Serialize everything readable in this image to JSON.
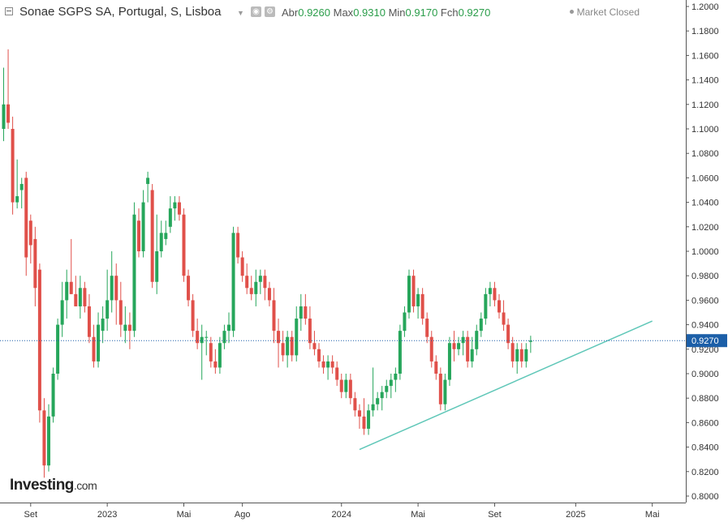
{
  "header": {
    "title": "Sonae SGPS SA, Portugal, S, Lisboa",
    "open_label": "Abr",
    "open": "0.9260",
    "high_label": "Max",
    "high": "0.9310",
    "low_label": "Min",
    "low": "0.9170",
    "close_label": "Fch",
    "close": "0.9270",
    "status": "Market Closed"
  },
  "logo": {
    "name": "Investing",
    "suffix": ".com"
  },
  "colors": {
    "up": "#26a65b",
    "down": "#e0504a",
    "trendline": "#5fc7b8",
    "last_price": "#1c5fa8"
  },
  "chart_data": {
    "type": "candlestick",
    "title": "Sonae SGPS SA, Portugal, S, Lisboa",
    "ylim": [
      0.79,
      1.205
    ],
    "y_ticks": [
      "1.2000",
      "1.1800",
      "1.1600",
      "1.1400",
      "1.1200",
      "1.1000",
      "1.0800",
      "1.0600",
      "1.0400",
      "1.0200",
      "1.0000",
      "0.9800",
      "0.9600",
      "0.9400",
      "0.9200",
      "0.9000",
      "0.8800",
      "0.8600",
      "0.8400",
      "0.8200",
      "0.8000"
    ],
    "x_labels": [
      {
        "label": "Set",
        "week": 6
      },
      {
        "label": "2023",
        "week": 23
      },
      {
        "label": "Mai",
        "week": 40
      },
      {
        "label": "Ago",
        "week": 53
      },
      {
        "label": "2024",
        "week": 75
      },
      {
        "label": "Mai",
        "week": 92
      },
      {
        "label": "Set",
        "week": 109
      },
      {
        "label": "2025",
        "week": 127
      },
      {
        "label": "Mai",
        "week": 144
      }
    ],
    "last_price": 0.927,
    "trendline": [
      {
        "week": 79,
        "price": 0.838
      },
      {
        "week": 144,
        "price": 0.943
      }
    ],
    "grid": false,
    "candles": [
      {
        "o": 1.1,
        "h": 1.15,
        "l": 1.09,
        "c": 1.12
      },
      {
        "o": 1.12,
        "h": 1.165,
        "l": 1.1,
        "c": 1.105
      },
      {
        "o": 1.1,
        "h": 1.11,
        "l": 1.03,
        "c": 1.04
      },
      {
        "o": 1.04,
        "h": 1.075,
        "l": 1.035,
        "c": 1.045
      },
      {
        "o": 1.05,
        "h": 1.06,
        "l": 1.035,
        "c": 1.055
      },
      {
        "o": 1.06,
        "h": 1.065,
        "l": 0.98,
        "c": 0.995
      },
      {
        "o": 1.025,
        "h": 1.03,
        "l": 0.99,
        "c": 1.005
      },
      {
        "o": 1.01,
        "h": 1.02,
        "l": 0.955,
        "c": 0.97
      },
      {
        "o": 0.985,
        "h": 0.99,
        "l": 0.86,
        "c": 0.87
      },
      {
        "o": 0.87,
        "h": 0.88,
        "l": 0.815,
        "c": 0.825
      },
      {
        "o": 0.825,
        "h": 0.875,
        "l": 0.82,
        "c": 0.865
      },
      {
        "o": 0.865,
        "h": 0.905,
        "l": 0.86,
        "c": 0.9
      },
      {
        "o": 0.9,
        "h": 0.945,
        "l": 0.895,
        "c": 0.94
      },
      {
        "o": 0.94,
        "h": 0.975,
        "l": 0.93,
        "c": 0.96
      },
      {
        "o": 0.96,
        "h": 0.985,
        "l": 0.945,
        "c": 0.975
      },
      {
        "o": 0.975,
        "h": 1.01,
        "l": 0.965,
        "c": 0.965
      },
      {
        "o": 0.965,
        "h": 0.98,
        "l": 0.955,
        "c": 0.955
      },
      {
        "o": 0.955,
        "h": 0.98,
        "l": 0.945,
        "c": 0.97
      },
      {
        "o": 0.97,
        "h": 0.975,
        "l": 0.95,
        "c": 0.955
      },
      {
        "o": 0.955,
        "h": 0.965,
        "l": 0.925,
        "c": 0.93
      },
      {
        "o": 0.93,
        "h": 0.94,
        "l": 0.905,
        "c": 0.91
      },
      {
        "o": 0.91,
        "h": 0.95,
        "l": 0.905,
        "c": 0.94
      },
      {
        "o": 0.935,
        "h": 0.955,
        "l": 0.925,
        "c": 0.945
      },
      {
        "o": 0.945,
        "h": 0.985,
        "l": 0.935,
        "c": 0.96
      },
      {
        "o": 0.96,
        "h": 1.0,
        "l": 0.95,
        "c": 0.98
      },
      {
        "o": 0.98,
        "h": 0.99,
        "l": 0.94,
        "c": 0.96
      },
      {
        "o": 0.96,
        "h": 0.975,
        "l": 0.93,
        "c": 0.94
      },
      {
        "o": 0.935,
        "h": 0.955,
        "l": 0.925,
        "c": 0.94
      },
      {
        "o": 0.94,
        "h": 0.95,
        "l": 0.92,
        "c": 0.935
      },
      {
        "o": 0.935,
        "h": 1.04,
        "l": 0.93,
        "c": 1.03
      },
      {
        "o": 1.025,
        "h": 1.035,
        "l": 0.995,
        "c": 1.0
      },
      {
        "o": 1.0,
        "h": 1.05,
        "l": 0.995,
        "c": 1.04
      },
      {
        "o": 1.055,
        "h": 1.065,
        "l": 1.04,
        "c": 1.06
      },
      {
        "o": 1.05,
        "h": 1.055,
        "l": 0.97,
        "c": 0.975
      },
      {
        "o": 0.975,
        "h": 1.03,
        "l": 0.965,
        "c": 1.0
      },
      {
        "o": 1.0,
        "h": 1.025,
        "l": 0.995,
        "c": 1.015
      },
      {
        "o": 1.01,
        "h": 1.025,
        "l": 1.005,
        "c": 1.015
      },
      {
        "o": 1.02,
        "h": 1.045,
        "l": 1.015,
        "c": 1.035
      },
      {
        "o": 1.035,
        "h": 1.045,
        "l": 1.025,
        "c": 1.04
      },
      {
        "o": 1.04,
        "h": 1.045,
        "l": 1.025,
        "c": 1.03
      },
      {
        "o": 1.03,
        "h": 1.035,
        "l": 0.975,
        "c": 0.98
      },
      {
        "o": 0.98,
        "h": 0.985,
        "l": 0.955,
        "c": 0.96
      },
      {
        "o": 0.96,
        "h": 0.965,
        "l": 0.93,
        "c": 0.935
      },
      {
        "o": 0.935,
        "h": 0.945,
        "l": 0.92,
        "c": 0.925
      },
      {
        "o": 0.925,
        "h": 0.94,
        "l": 0.895,
        "c": 0.93
      },
      {
        "o": 0.93,
        "h": 0.935,
        "l": 0.915,
        "c": 0.93
      },
      {
        "o": 0.925,
        "h": 0.93,
        "l": 0.905,
        "c": 0.91
      },
      {
        "o": 0.91,
        "h": 0.92,
        "l": 0.9,
        "c": 0.905
      },
      {
        "o": 0.905,
        "h": 0.93,
        "l": 0.9,
        "c": 0.925
      },
      {
        "o": 0.925,
        "h": 0.94,
        "l": 0.92,
        "c": 0.935
      },
      {
        "o": 0.935,
        "h": 0.95,
        "l": 0.925,
        "c": 0.94
      },
      {
        "o": 0.935,
        "h": 1.02,
        "l": 0.93,
        "c": 1.015
      },
      {
        "o": 1.015,
        "h": 1.02,
        "l": 0.99,
        "c": 0.995
      },
      {
        "o": 0.995,
        "h": 1.0,
        "l": 0.975,
        "c": 0.98
      },
      {
        "o": 0.98,
        "h": 0.99,
        "l": 0.965,
        "c": 0.97
      },
      {
        "o": 0.97,
        "h": 0.98,
        "l": 0.96,
        "c": 0.965
      },
      {
        "o": 0.965,
        "h": 0.985,
        "l": 0.955,
        "c": 0.975
      },
      {
        "o": 0.975,
        "h": 0.985,
        "l": 0.965,
        "c": 0.98
      },
      {
        "o": 0.98,
        "h": 0.985,
        "l": 0.96,
        "c": 0.97
      },
      {
        "o": 0.97,
        "h": 0.975,
        "l": 0.955,
        "c": 0.96
      },
      {
        "o": 0.96,
        "h": 0.97,
        "l": 0.925,
        "c": 0.935
      },
      {
        "o": 0.935,
        "h": 0.945,
        "l": 0.905,
        "c": 0.925
      },
      {
        "o": 0.925,
        "h": 0.935,
        "l": 0.91,
        "c": 0.915
      },
      {
        "o": 0.915,
        "h": 0.935,
        "l": 0.905,
        "c": 0.93
      },
      {
        "o": 0.93,
        "h": 0.935,
        "l": 0.91,
        "c": 0.915
      },
      {
        "o": 0.915,
        "h": 0.955,
        "l": 0.91,
        "c": 0.945
      },
      {
        "o": 0.945,
        "h": 0.965,
        "l": 0.935,
        "c": 0.955
      },
      {
        "o": 0.955,
        "h": 0.965,
        "l": 0.94,
        "c": 0.945
      },
      {
        "o": 0.945,
        "h": 0.955,
        "l": 0.92,
        "c": 0.925
      },
      {
        "o": 0.925,
        "h": 0.935,
        "l": 0.915,
        "c": 0.92
      },
      {
        "o": 0.92,
        "h": 0.925,
        "l": 0.905,
        "c": 0.91
      },
      {
        "o": 0.91,
        "h": 0.915,
        "l": 0.9,
        "c": 0.905
      },
      {
        "o": 0.905,
        "h": 0.915,
        "l": 0.895,
        "c": 0.91
      },
      {
        "o": 0.91,
        "h": 0.915,
        "l": 0.9,
        "c": 0.905
      },
      {
        "o": 0.905,
        "h": 0.91,
        "l": 0.89,
        "c": 0.895
      },
      {
        "o": 0.895,
        "h": 0.9,
        "l": 0.88,
        "c": 0.885
      },
      {
        "o": 0.885,
        "h": 0.9,
        "l": 0.88,
        "c": 0.895
      },
      {
        "o": 0.895,
        "h": 0.9,
        "l": 0.875,
        "c": 0.88
      },
      {
        "o": 0.88,
        "h": 0.885,
        "l": 0.865,
        "c": 0.87
      },
      {
        "o": 0.87,
        "h": 0.875,
        "l": 0.855,
        "c": 0.865
      },
      {
        "o": 0.865,
        "h": 0.88,
        "l": 0.85,
        "c": 0.855
      },
      {
        "o": 0.855,
        "h": 0.875,
        "l": 0.85,
        "c": 0.87
      },
      {
        "o": 0.87,
        "h": 0.905,
        "l": 0.865,
        "c": 0.875
      },
      {
        "o": 0.875,
        "h": 0.885,
        "l": 0.87,
        "c": 0.88
      },
      {
        "o": 0.88,
        "h": 0.89,
        "l": 0.87,
        "c": 0.885
      },
      {
        "o": 0.885,
        "h": 0.895,
        "l": 0.88,
        "c": 0.89
      },
      {
        "o": 0.89,
        "h": 0.9,
        "l": 0.88,
        "c": 0.895
      },
      {
        "o": 0.895,
        "h": 0.905,
        "l": 0.885,
        "c": 0.9
      },
      {
        "o": 0.9,
        "h": 0.94,
        "l": 0.895,
        "c": 0.935
      },
      {
        "o": 0.935,
        "h": 0.955,
        "l": 0.93,
        "c": 0.95
      },
      {
        "o": 0.95,
        "h": 0.985,
        "l": 0.945,
        "c": 0.98
      },
      {
        "o": 0.98,
        "h": 0.985,
        "l": 0.95,
        "c": 0.955
      },
      {
        "o": 0.955,
        "h": 0.97,
        "l": 0.945,
        "c": 0.965
      },
      {
        "o": 0.965,
        "h": 0.97,
        "l": 0.94,
        "c": 0.945
      },
      {
        "o": 0.945,
        "h": 0.95,
        "l": 0.925,
        "c": 0.93
      },
      {
        "o": 0.93,
        "h": 0.935,
        "l": 0.905,
        "c": 0.91
      },
      {
        "o": 0.91,
        "h": 0.915,
        "l": 0.895,
        "c": 0.9
      },
      {
        "o": 0.9,
        "h": 0.905,
        "l": 0.87,
        "c": 0.875
      },
      {
        "o": 0.875,
        "h": 0.9,
        "l": 0.87,
        "c": 0.895
      },
      {
        "o": 0.895,
        "h": 0.93,
        "l": 0.89,
        "c": 0.925
      },
      {
        "o": 0.925,
        "h": 0.935,
        "l": 0.91,
        "c": 0.92
      },
      {
        "o": 0.92,
        "h": 0.93,
        "l": 0.915,
        "c": 0.925
      },
      {
        "o": 0.925,
        "h": 0.935,
        "l": 0.915,
        "c": 0.93
      },
      {
        "o": 0.93,
        "h": 0.935,
        "l": 0.905,
        "c": 0.91
      },
      {
        "o": 0.91,
        "h": 0.93,
        "l": 0.905,
        "c": 0.92
      },
      {
        "o": 0.92,
        "h": 0.94,
        "l": 0.915,
        "c": 0.935
      },
      {
        "o": 0.935,
        "h": 0.95,
        "l": 0.93,
        "c": 0.945
      },
      {
        "o": 0.945,
        "h": 0.97,
        "l": 0.94,
        "c": 0.965
      },
      {
        "o": 0.965,
        "h": 0.975,
        "l": 0.955,
        "c": 0.97
      },
      {
        "o": 0.97,
        "h": 0.975,
        "l": 0.955,
        "c": 0.96
      },
      {
        "o": 0.96,
        "h": 0.965,
        "l": 0.945,
        "c": 0.95
      },
      {
        "o": 0.95,
        "h": 0.96,
        "l": 0.935,
        "c": 0.94
      },
      {
        "o": 0.94,
        "h": 0.945,
        "l": 0.92,
        "c": 0.925
      },
      {
        "o": 0.925,
        "h": 0.93,
        "l": 0.905,
        "c": 0.91
      },
      {
        "o": 0.91,
        "h": 0.925,
        "l": 0.9,
        "c": 0.92
      },
      {
        "o": 0.92,
        "h": 0.925,
        "l": 0.905,
        "c": 0.91
      },
      {
        "o": 0.91,
        "h": 0.925,
        "l": 0.905,
        "c": 0.92
      },
      {
        "o": 0.926,
        "h": 0.931,
        "l": 0.917,
        "c": 0.927
      }
    ]
  }
}
